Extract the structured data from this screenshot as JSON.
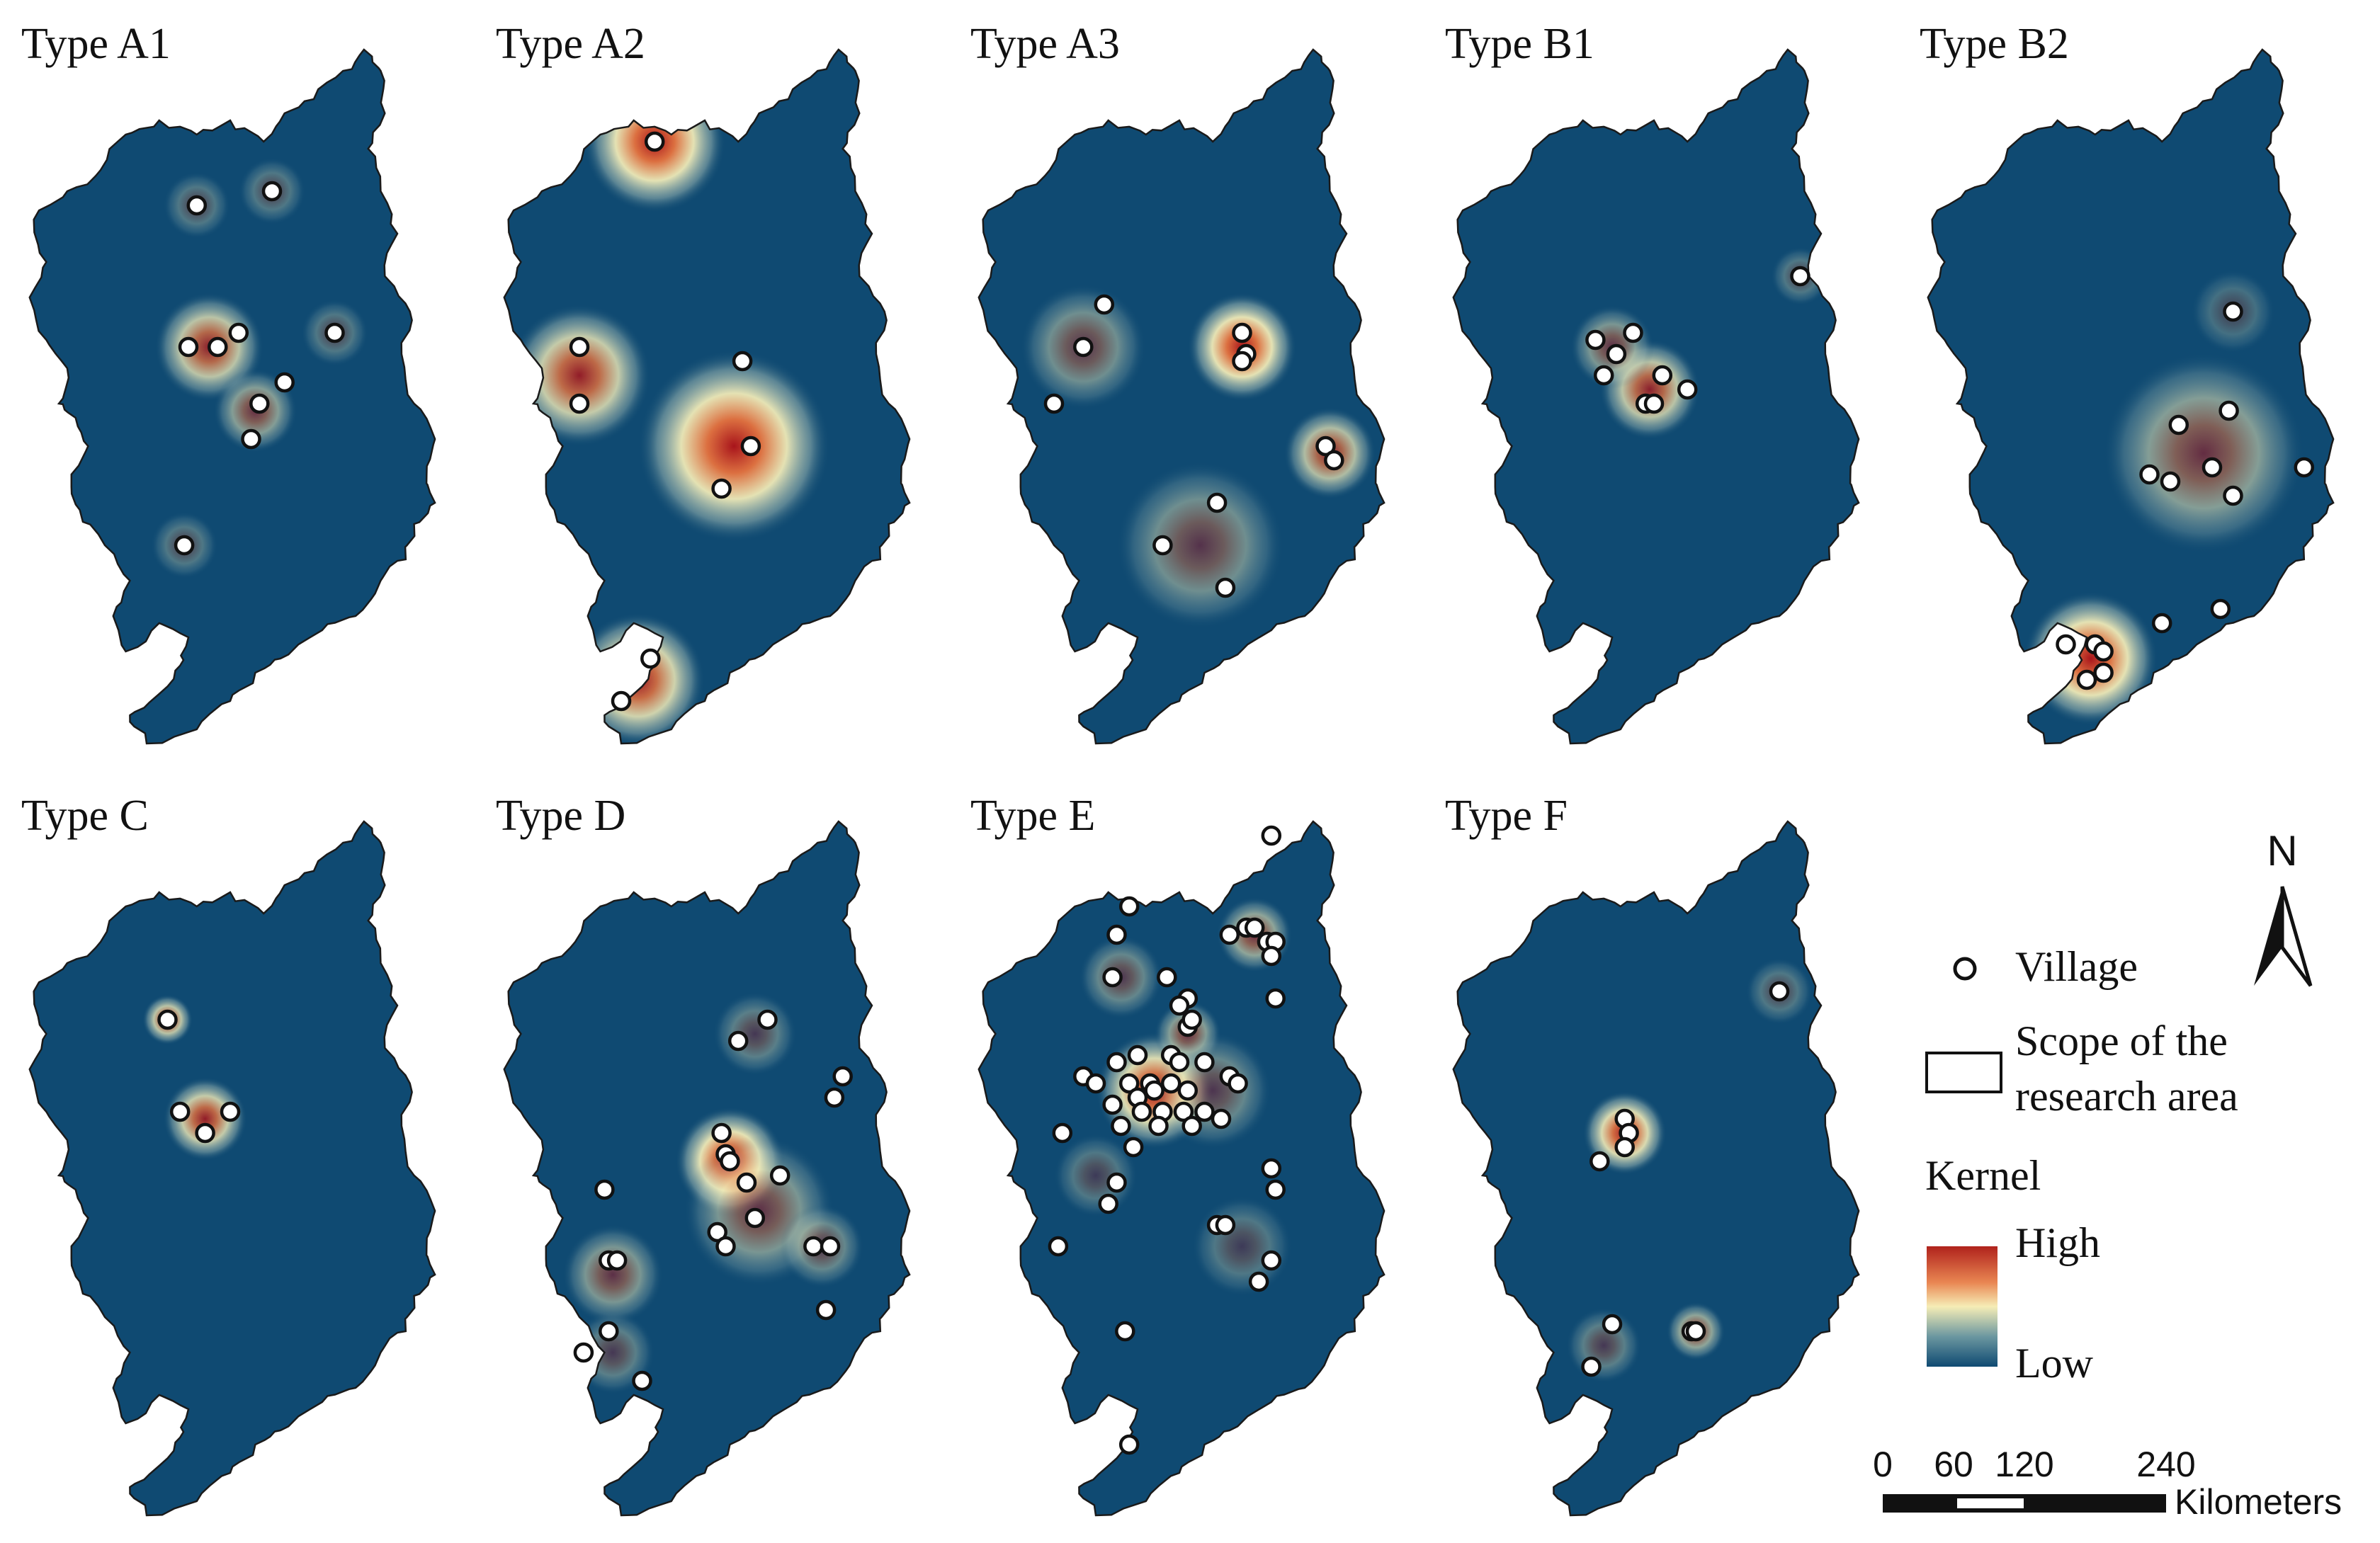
{
  "colors": {
    "region_fill": "#0f4a72",
    "region_stroke": "#1a1a1a",
    "kernel_high": "#b0221c",
    "kernel_mid": "#f6edb6",
    "kernel_low": "#0f4a72",
    "village_fill": "#ffffff",
    "village_stroke": "#111111"
  },
  "panels": [
    {
      "title": "Type A1",
      "villages": [
        [
          0.42,
          0.22
        ],
        [
          0.6,
          0.2
        ],
        [
          0.4,
          0.42
        ],
        [
          0.47,
          0.42
        ],
        [
          0.52,
          0.4
        ],
        [
          0.57,
          0.5
        ],
        [
          0.55,
          0.55
        ],
        [
          0.63,
          0.47
        ],
        [
          0.75,
          0.4
        ],
        [
          0.39,
          0.7
        ]
      ],
      "hotspots": [
        [
          0.45,
          0.42,
          0.13,
          0.8
        ],
        [
          0.56,
          0.51,
          0.1,
          0.55
        ],
        [
          0.42,
          0.22,
          0.08,
          0.3
        ],
        [
          0.6,
          0.2,
          0.08,
          0.3
        ],
        [
          0.75,
          0.4,
          0.08,
          0.3
        ],
        [
          0.39,
          0.7,
          0.08,
          0.3
        ]
      ]
    },
    {
      "title": "Type A2",
      "villages": [
        [
          0.38,
          0.13
        ],
        [
          0.2,
          0.42
        ],
        [
          0.2,
          0.5
        ],
        [
          0.59,
          0.44
        ],
        [
          0.61,
          0.56
        ],
        [
          0.54,
          0.62
        ],
        [
          0.37,
          0.86
        ],
        [
          0.3,
          0.92
        ]
      ],
      "hotspots": [
        [
          0.38,
          0.13,
          0.17,
          1.0
        ],
        [
          0.2,
          0.46,
          0.17,
          0.85
        ],
        [
          0.57,
          0.56,
          0.23,
          1.0
        ],
        [
          0.34,
          0.89,
          0.16,
          0.9
        ]
      ]
    },
    {
      "title": "Type A3",
      "villages": [
        [
          0.32,
          0.36
        ],
        [
          0.27,
          0.42
        ],
        [
          0.2,
          0.5
        ],
        [
          0.65,
          0.4
        ],
        [
          0.66,
          0.43
        ],
        [
          0.65,
          0.44
        ],
        [
          0.85,
          0.56
        ],
        [
          0.87,
          0.58
        ],
        [
          0.59,
          0.64
        ],
        [
          0.46,
          0.7
        ],
        [
          0.61,
          0.76
        ]
      ],
      "hotspots": [
        [
          0.65,
          0.42,
          0.13,
          1.0
        ],
        [
          0.86,
          0.57,
          0.11,
          0.75
        ],
        [
          0.27,
          0.42,
          0.15,
          0.45
        ],
        [
          0.55,
          0.7,
          0.2,
          0.45
        ]
      ]
    },
    {
      "title": "Type B1",
      "villages": [
        [
          0.85,
          0.32
        ],
        [
          0.36,
          0.41
        ],
        [
          0.41,
          0.43
        ],
        [
          0.45,
          0.4
        ],
        [
          0.38,
          0.46
        ],
        [
          0.52,
          0.46
        ],
        [
          0.48,
          0.5
        ],
        [
          0.5,
          0.5
        ],
        [
          0.58,
          0.48
        ]
      ],
      "hotspots": [
        [
          0.49,
          0.48,
          0.12,
          0.8
        ],
        [
          0.4,
          0.42,
          0.1,
          0.5
        ],
        [
          0.85,
          0.32,
          0.07,
          0.3
        ]
      ]
    },
    {
      "title": "Type B2",
      "villages": [
        [
          0.75,
          0.37
        ],
        [
          0.74,
          0.51
        ],
        [
          0.62,
          0.53
        ],
        [
          0.7,
          0.59
        ],
        [
          0.55,
          0.6
        ],
        [
          0.6,
          0.61
        ],
        [
          0.75,
          0.63
        ],
        [
          0.92,
          0.59
        ],
        [
          0.72,
          0.79
        ],
        [
          0.58,
          0.81
        ],
        [
          0.35,
          0.84
        ],
        [
          0.42,
          0.84
        ],
        [
          0.44,
          0.85
        ],
        [
          0.44,
          0.88
        ],
        [
          0.4,
          0.89
        ]
      ],
      "hotspots": [
        [
          0.68,
          0.57,
          0.24,
          0.55
        ],
        [
          0.41,
          0.86,
          0.16,
          1.0
        ],
        [
          0.75,
          0.37,
          0.1,
          0.25
        ]
      ]
    },
    {
      "title": "Type C",
      "villages": [
        [
          0.35,
          0.28
        ],
        [
          0.38,
          0.41
        ],
        [
          0.44,
          0.44
        ],
        [
          0.5,
          0.41
        ]
      ],
      "hotspots": [
        [
          0.35,
          0.28,
          0.06,
          0.8
        ],
        [
          0.44,
          0.42,
          0.1,
          0.85
        ]
      ]
    },
    {
      "title": "Type D",
      "villages": [
        [
          0.65,
          0.28
        ],
        [
          0.58,
          0.31
        ],
        [
          0.83,
          0.36
        ],
        [
          0.81,
          0.39
        ],
        [
          0.54,
          0.44
        ],
        [
          0.55,
          0.47
        ],
        [
          0.56,
          0.48
        ],
        [
          0.6,
          0.51
        ],
        [
          0.68,
          0.5
        ],
        [
          0.62,
          0.56
        ],
        [
          0.53,
          0.58
        ],
        [
          0.55,
          0.6
        ],
        [
          0.76,
          0.6
        ],
        [
          0.8,
          0.6
        ],
        [
          0.26,
          0.52
        ],
        [
          0.27,
          0.62
        ],
        [
          0.29,
          0.62
        ],
        [
          0.27,
          0.72
        ],
        [
          0.21,
          0.75
        ],
        [
          0.35,
          0.79
        ],
        [
          0.79,
          0.69
        ]
      ],
      "hotspots": [
        [
          0.56,
          0.48,
          0.13,
          1.0
        ],
        [
          0.63,
          0.55,
          0.18,
          0.5
        ],
        [
          0.28,
          0.64,
          0.12,
          0.5
        ],
        [
          0.78,
          0.6,
          0.1,
          0.4
        ],
        [
          0.62,
          0.3,
          0.1,
          0.35
        ],
        [
          0.28,
          0.75,
          0.1,
          0.35
        ]
      ]
    },
    {
      "title": "Type E",
      "villages": [
        [
          0.72,
          0.02
        ],
        [
          0.38,
          0.12
        ],
        [
          0.35,
          0.16
        ],
        [
          0.62,
          0.16
        ],
        [
          0.66,
          0.15
        ],
        [
          0.68,
          0.15
        ],
        [
          0.71,
          0.17
        ],
        [
          0.73,
          0.17
        ],
        [
          0.72,
          0.19
        ],
        [
          0.34,
          0.22
        ],
        [
          0.47,
          0.22
        ],
        [
          0.52,
          0.25
        ],
        [
          0.5,
          0.26
        ],
        [
          0.73,
          0.25
        ],
        [
          0.52,
          0.29
        ],
        [
          0.53,
          0.28
        ],
        [
          0.35,
          0.34
        ],
        [
          0.4,
          0.33
        ],
        [
          0.48,
          0.33
        ],
        [
          0.5,
          0.34
        ],
        [
          0.56,
          0.34
        ],
        [
          0.27,
          0.36
        ],
        [
          0.3,
          0.37
        ],
        [
          0.38,
          0.37
        ],
        [
          0.43,
          0.37
        ],
        [
          0.48,
          0.37
        ],
        [
          0.4,
          0.39
        ],
        [
          0.44,
          0.38
        ],
        [
          0.52,
          0.38
        ],
        [
          0.62,
          0.36
        ],
        [
          0.64,
          0.37
        ],
        [
          0.34,
          0.4
        ],
        [
          0.41,
          0.41
        ],
        [
          0.46,
          0.41
        ],
        [
          0.51,
          0.41
        ],
        [
          0.56,
          0.41
        ],
        [
          0.36,
          0.43
        ],
        [
          0.45,
          0.43
        ],
        [
          0.53,
          0.43
        ],
        [
          0.6,
          0.42
        ],
        [
          0.22,
          0.44
        ],
        [
          0.39,
          0.46
        ],
        [
          0.72,
          0.49
        ],
        [
          0.73,
          0.52
        ],
        [
          0.35,
          0.51
        ],
        [
          0.33,
          0.54
        ],
        [
          0.59,
          0.57
        ],
        [
          0.61,
          0.57
        ],
        [
          0.72,
          0.62
        ],
        [
          0.69,
          0.65
        ],
        [
          0.21,
          0.6
        ],
        [
          0.37,
          0.72
        ],
        [
          0.38,
          0.88
        ]
      ],
      "hotspots": [
        [
          0.44,
          0.38,
          0.14,
          0.95
        ],
        [
          0.52,
          0.3,
          0.08,
          0.55
        ],
        [
          0.68,
          0.16,
          0.09,
          0.6
        ],
        [
          0.36,
          0.22,
          0.1,
          0.4
        ],
        [
          0.58,
          0.38,
          0.14,
          0.4
        ],
        [
          0.3,
          0.5,
          0.1,
          0.3
        ],
        [
          0.65,
          0.6,
          0.12,
          0.3
        ]
      ]
    },
    {
      "title": "Type F",
      "villages": [
        [
          0.8,
          0.24
        ],
        [
          0.43,
          0.42
        ],
        [
          0.44,
          0.44
        ],
        [
          0.43,
          0.46
        ],
        [
          0.37,
          0.48
        ],
        [
          0.4,
          0.71
        ],
        [
          0.59,
          0.72
        ],
        [
          0.6,
          0.72
        ],
        [
          0.35,
          0.77
        ]
      ],
      "hotspots": [
        [
          0.43,
          0.44,
          0.1,
          0.95
        ],
        [
          0.6,
          0.72,
          0.07,
          0.6
        ],
        [
          0.38,
          0.74,
          0.09,
          0.35
        ],
        [
          0.8,
          0.24,
          0.08,
          0.3
        ]
      ]
    }
  ],
  "legend": {
    "village_label": "Village",
    "scope_line1": "Scope of the",
    "scope_line2": "research area",
    "kernel_title": "Kernel",
    "high_label": "High",
    "low_label": "Low",
    "north_label": "N",
    "scale_ticks": [
      "0",
      "60",
      "120",
      "240"
    ],
    "scale_unit": "Kilometers"
  }
}
